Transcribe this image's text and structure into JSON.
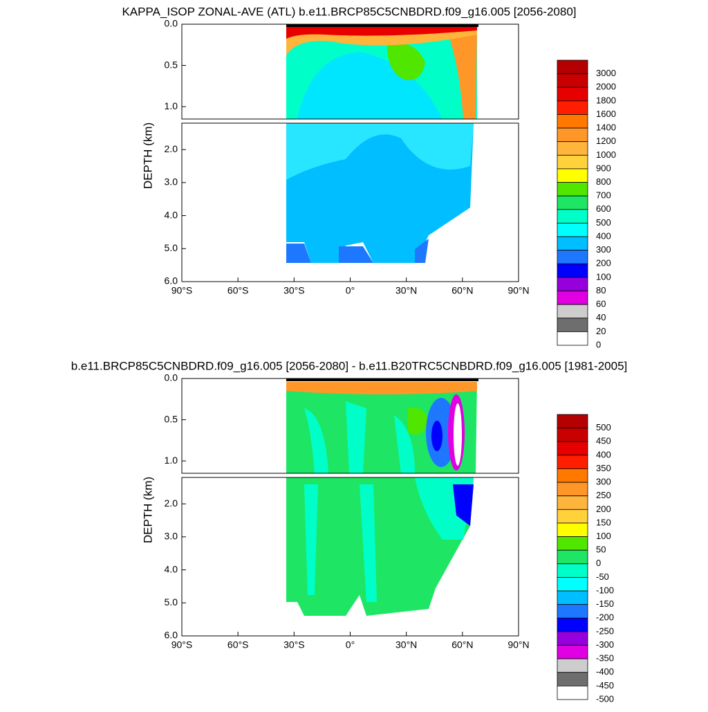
{
  "chart_data": [
    {
      "type": "contour",
      "title": "KAPPA_ISOP ZONAL-AVE (ATL) b.e11.BRCP85C5CNBDRD.f09_g16.005 [2056-2080]",
      "ylabel": "DEPTH (km)",
      "xlim": [
        -90,
        90
      ],
      "xticks": [
        {
          "value": -90,
          "label": "90°S"
        },
        {
          "value": -60,
          "label": "60°S"
        },
        {
          "value": -30,
          "label": "30°S"
        },
        {
          "value": 0,
          "label": "0°"
        },
        {
          "value": 30,
          "label": "30°N"
        },
        {
          "value": 60,
          "label": "60°N"
        },
        {
          "value": 90,
          "label": "90°N"
        }
      ],
      "yaxes": [
        {
          "ylim": [
            0,
            1.15
          ],
          "yticks": [
            {
              "value": 0,
              "label": "0.0"
            },
            {
              "value": 0.5,
              "label": "0.5"
            },
            {
              "value": 1,
              "label": "1.0"
            }
          ]
        },
        {
          "ylim": [
            1.2,
            6
          ],
          "yticks": [
            {
              "value": 2,
              "label": "2.0"
            },
            {
              "value": 3,
              "label": "3.0"
            },
            {
              "value": 4,
              "label": "4.0"
            },
            {
              "value": 5,
              "label": "5.0"
            },
            {
              "value": 6,
              "label": "6.0"
            }
          ]
        }
      ],
      "levels": [
        3000,
        2000,
        1800,
        1600,
        1400,
        1200,
        1000,
        900,
        800,
        700,
        600,
        500,
        400,
        300,
        200,
        100,
        80,
        60,
        40,
        20,
        0
      ],
      "colors": [
        "#b40000",
        "#c80000",
        "#e60000",
        "#ff1e00",
        "#ff7800",
        "#ff9628",
        "#ffb43c",
        "#ffd23c",
        "#ffff00",
        "#50e600",
        "#1ee664",
        "#00ffc8",
        "#00ffff",
        "#00beff",
        "#1e78ff",
        "#0000ff",
        "#9600dc",
        "#e100e1",
        "#cdcdcd",
        "#6e6e6e",
        "#ffffff"
      ]
    },
    {
      "type": "contour",
      "title": "b.e11.BRCP85C5CNBDRD.f09_g16.005 [2056-2080] - b.e11.B20TRC5CNBDRD.f09_g16.005 [1981-2005]",
      "ylabel": "DEPTH (km)",
      "xlim": [
        -90,
        90
      ],
      "xticks": [
        {
          "value": -90,
          "label": "90°S"
        },
        {
          "value": -60,
          "label": "60°S"
        },
        {
          "value": -30,
          "label": "30°S"
        },
        {
          "value": 0,
          "label": "0°"
        },
        {
          "value": 30,
          "label": "30°N"
        },
        {
          "value": 60,
          "label": "60°N"
        },
        {
          "value": 90,
          "label": "90°N"
        }
      ],
      "yaxes": [
        {
          "ylim": [
            0,
            1.15
          ],
          "yticks": [
            {
              "value": 0,
              "label": "0.0"
            },
            {
              "value": 0.5,
              "label": "0.5"
            },
            {
              "value": 1,
              "label": "1.0"
            }
          ]
        },
        {
          "ylim": [
            1.2,
            6
          ],
          "yticks": [
            {
              "value": 2,
              "label": "2.0"
            },
            {
              "value": 3,
              "label": "3.0"
            },
            {
              "value": 4,
              "label": "4.0"
            },
            {
              "value": 5,
              "label": "5.0"
            },
            {
              "value": 6,
              "label": "6.0"
            }
          ]
        }
      ],
      "levels": [
        500,
        450,
        400,
        350,
        300,
        250,
        200,
        150,
        100,
        50,
        0,
        -50,
        -100,
        -150,
        -200,
        -250,
        -300,
        -350,
        -400,
        -450,
        -500
      ],
      "colors": [
        "#b40000",
        "#c80000",
        "#e60000",
        "#ff1e00",
        "#ff7800",
        "#ff9628",
        "#ffb43c",
        "#ffd23c",
        "#ffff00",
        "#50e600",
        "#1ee664",
        "#00ffc8",
        "#00ffff",
        "#00beff",
        "#1e78ff",
        "#0000ff",
        "#9600dc",
        "#e100e1",
        "#cdcdcd",
        "#6e6e6e",
        "#ffffff"
      ]
    }
  ]
}
